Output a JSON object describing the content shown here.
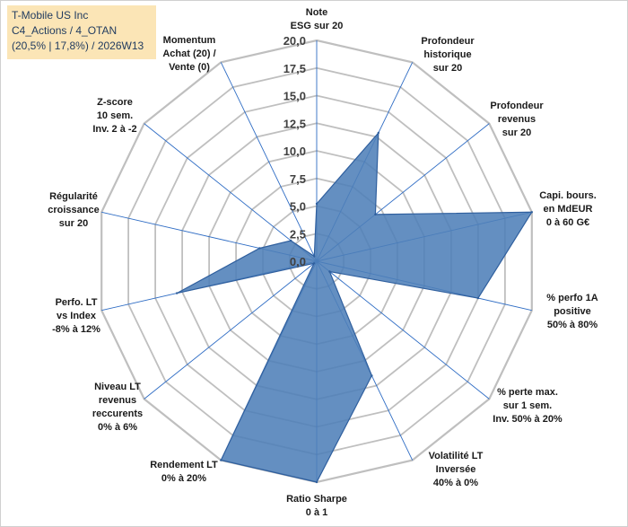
{
  "info": {
    "line1": "T-Mobile US Inc",
    "line2": "C4_Actions / 4_OTAN",
    "line3": "(20,5% | 17,8%) / 2026W13"
  },
  "colors": {
    "fill": "#4f7fb8",
    "stroke": "#2f5f9e",
    "grid": "#bfbfbf",
    "spoke": "#2e6cc4",
    "info_bg": "#fbe5b6"
  },
  "chart_data": {
    "type": "radar",
    "rmin": 0,
    "rmax": 20,
    "tick_labels": [
      "0,0",
      "2,5",
      "5,0",
      "7,5",
      "10,0",
      "12,5",
      "15,0",
      "17,5",
      "20,0"
    ],
    "axes": [
      [
        "Note",
        "ESG sur 20"
      ],
      [
        "Profondeur",
        "historique",
        "sur 20"
      ],
      [
        "Profondeur",
        "revenus",
        "sur 20"
      ],
      [
        "Capi. bours.",
        "en MdEUR",
        "0 à 60 G€"
      ],
      [
        "% perfo 1A",
        "positive",
        "50% à 80%"
      ],
      [
        "% perte max.",
        "sur 1 sem.",
        "Inv. 50% à 20%"
      ],
      [
        "Volatilité LT",
        "Inversée",
        "40% à 0%"
      ],
      [
        "Ratio Sharpe",
        "0 à 1"
      ],
      [
        "Rendement LT",
        "0% à 20%"
      ],
      [
        "Niveau LT",
        "revenus",
        "reccurents",
        "0% à 6%"
      ],
      [
        "Perfo. LT",
        "vs Index",
        "-8% à 12%"
      ],
      [
        "Régularité",
        "croissance",
        "sur 20"
      ],
      [
        "Z-score",
        "10 sem.",
        "Inv. 2 à -2"
      ],
      [
        "Momentum",
        "Achat (20) /",
        "Vente (0)"
      ]
    ],
    "values": [
      5.2,
      12.9,
      6.8,
      20.0,
      15.0,
      1.5,
      11.5,
      20.0,
      20.0,
      0.3,
      13.0,
      5.3,
      3.0,
      0.5
    ]
  }
}
